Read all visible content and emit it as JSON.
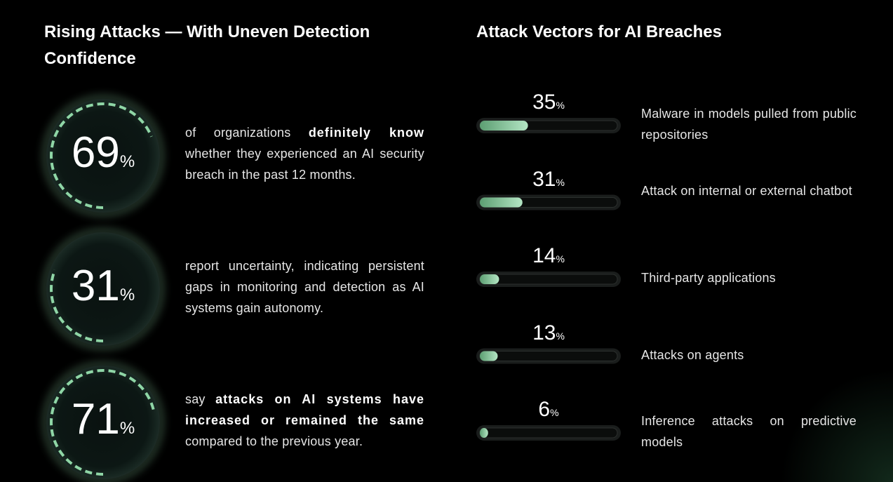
{
  "chart_data": [
    {
      "type": "gauge",
      "title": "Rising Attacks — With Uneven Detection Confidence",
      "unit": "%",
      "ylim": [
        0,
        100
      ],
      "color": "#8fd6a6",
      "values": [
        69,
        31,
        71
      ],
      "descriptions": [
        [
          {
            "text": "of organizations "
          },
          {
            "text": "definitely know",
            "bold": true
          },
          {
            "text": " whether they experienced an AI security breach in the past 12 months."
          }
        ],
        [
          {
            "text": "report uncertainty, indicating persistent gaps in monitoring and detection as AI systems gain autonomy."
          }
        ],
        [
          {
            "text": "say "
          },
          {
            "text": "attacks on AI systems have increased or remained the same",
            "bold": true
          },
          {
            "text": " compared to the previous year."
          }
        ]
      ]
    },
    {
      "type": "bar",
      "title": "Attack Vectors for AI Breaches",
      "unit": "%",
      "xlim": [
        0,
        100
      ],
      "color": "#8fd6a6",
      "categories": [
        "Malware in models pulled from public repositories",
        "Attack on internal or external chatbot",
        "Third-party applications",
        "Attacks on agents",
        "Inference attacks on predictive models"
      ],
      "values": [
        35,
        31,
        14,
        13,
        6
      ]
    }
  ]
}
